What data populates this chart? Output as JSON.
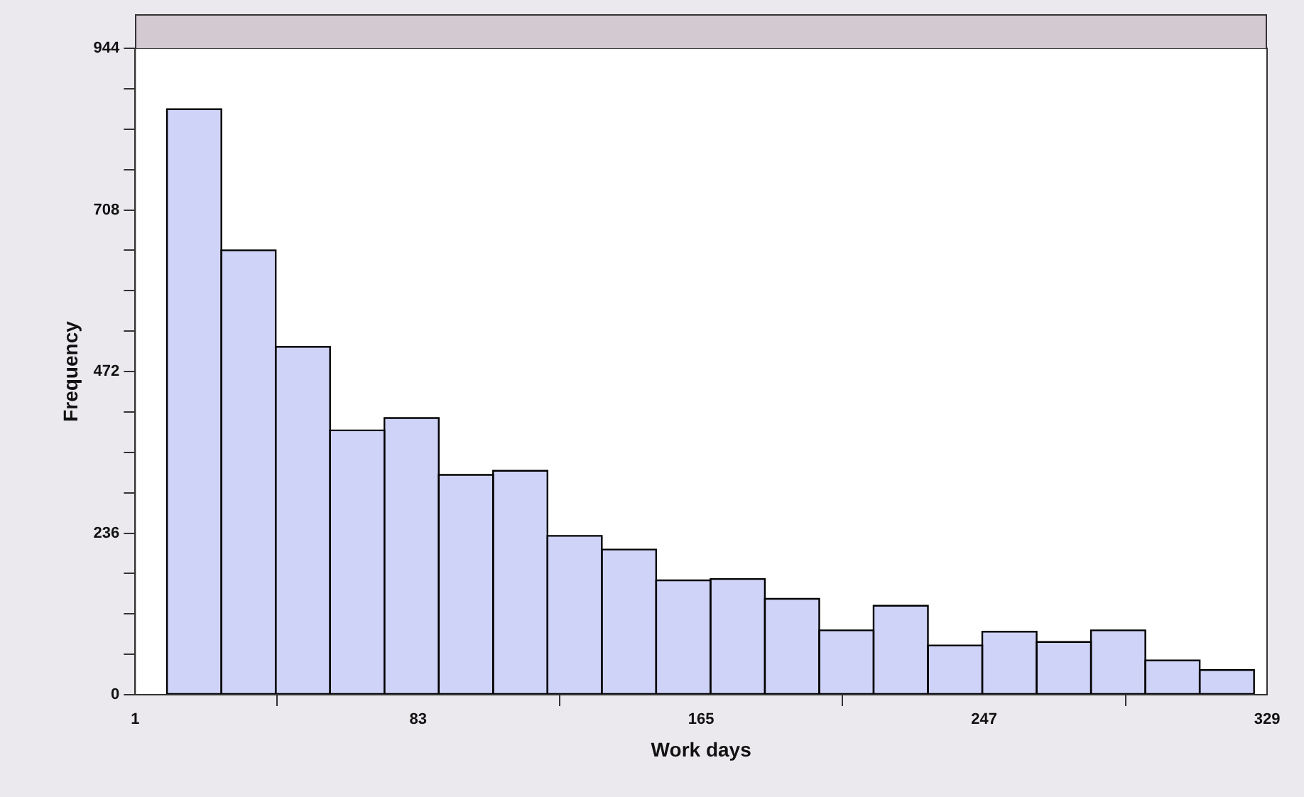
{
  "chart_data": {
    "type": "histogram",
    "xlabel": "Work days",
    "ylabel": "Frequency",
    "bins": [
      10.2,
      26,
      41.7,
      57.5,
      73.2,
      89,
      104.7,
      120.5,
      136.2,
      152,
      167.7,
      183.5,
      199.2,
      215,
      230.7,
      246.5,
      262.2,
      278,
      293.7,
      309.5,
      325.2
    ],
    "values": [
      855,
      649,
      508,
      386,
      404,
      321,
      327,
      232,
      212,
      167,
      169,
      140,
      94,
      130,
      72,
      92,
      77,
      94,
      50,
      36
    ],
    "color": "#d0d3f8",
    "xlim": [
      1,
      329
    ],
    "xticks": [
      1,
      83,
      165,
      247,
      329
    ],
    "ylim": [
      0,
      944
    ],
    "yticks": [
      0,
      {
        "value": 59,
        "label": null
      },
      {
        "value": 118,
        "label": null
      },
      {
        "value": 177,
        "label": null
      },
      236,
      {
        "value": 295,
        "label": null
      },
      {
        "value": 354,
        "label": null
      },
      {
        "value": 413,
        "label": null
      },
      472,
      {
        "value": 531,
        "label": null
      },
      {
        "value": 590,
        "label": null
      },
      {
        "value": 649,
        "label": null
      },
      708,
      {
        "value": 767,
        "label": null
      },
      {
        "value": 826,
        "label": null
      },
      {
        "value": 885,
        "label": null
      },
      944
    ],
    "grid": false
  }
}
